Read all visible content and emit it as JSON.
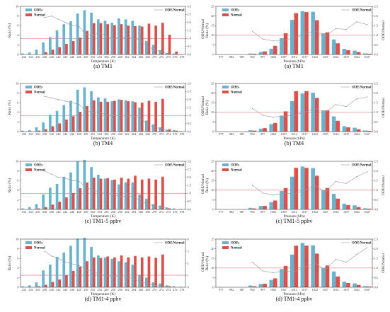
{
  "colors": {
    "odes": "#6bb3cc",
    "normal": "#d9514a",
    "ratio_line": "#9a9aa6",
    "ref_line": "#e07a80",
    "axis": "#444444"
  },
  "legend": {
    "odes": "ODEs",
    "normal": "Normal",
    "ratio": "ODE/Normal"
  },
  "chart_data": [
    {
      "type": "bar",
      "caption": "(a) TM1",
      "xlabel": "Temperature (K)",
      "ylabel": "Ratio (%)",
      "y2label": "",
      "ylim": [
        0,
        10
      ],
      "yticks": [
        0,
        2,
        4,
        6,
        8,
        10
      ],
      "y2lim": [
        0,
        3
      ],
      "y2ticks": [
        "0.0",
        "0.5",
        "1.0",
        "1.5",
        "2.0",
        "2.5",
        "3.0"
      ],
      "ref_level": 1.0,
      "categories": [
        "232",
        "234",
        "236",
        "238",
        "240",
        "242",
        "244",
        "246",
        "248",
        "250",
        "252",
        "254",
        "256",
        "258",
        "260",
        "262",
        "264",
        "266",
        "268",
        "270",
        "272",
        "274",
        "276",
        "278"
      ],
      "series": [
        {
          "name": "ODEs",
          "values": [
            0.2,
            0.4,
            1.0,
            2.5,
            3.6,
            5.0,
            6.3,
            6.9,
            8.5,
            9.2,
            8.7,
            7.3,
            7.0,
            6.6,
            7.5,
            7.3,
            7.0,
            6.0,
            2.8,
            2.0,
            0.9,
            0.3,
            0.2,
            0.1
          ]
        },
        {
          "name": "Normal",
          "values": [
            0,
            0,
            0,
            0.5,
            1.0,
            1.5,
            2.2,
            2.8,
            3.5,
            4.9,
            6.5,
            6.5,
            6.3,
            6.1,
            6.3,
            6.0,
            5.9,
            5.8,
            6.4,
            6.0,
            6.6,
            4.1,
            0.6,
            0
          ]
        },
        {
          "name": "ODE/Normal",
          "values": [
            null,
            null,
            null,
            2.3,
            2.4,
            2.2,
            2.0,
            1.8,
            1.75,
            1.25,
            1.2,
            1.35,
            1.15,
            1.0,
            1.05,
            1.1,
            1.0,
            0.9,
            0.45,
            0.35,
            0.15,
            0.05,
            null,
            null
          ]
        }
      ]
    },
    {
      "type": "bar",
      "caption": "(a) TM1",
      "xlabel": "Pressure (hPa)",
      "ylabel": "Ratio (%)",
      "y2label": "ODE/Normal",
      "ylim": [
        0,
        25
      ],
      "yticks": [
        0,
        5,
        10,
        15,
        20,
        25
      ],
      "y2lim": [
        0,
        2.5
      ],
      "y2ticks": [
        "0.0",
        "0.5",
        "1.0",
        "1.5",
        "2.0",
        "2.5"
      ],
      "ref_level": 1.0,
      "categories": [
        "977",
        "982",
        "987",
        "992",
        "997",
        "1002",
        "1007",
        "1012",
        "1017",
        "1022",
        "1027",
        "1032",
        "1037",
        "1042",
        "1047"
      ],
      "series": [
        {
          "name": "ODEs",
          "values": [
            0,
            0,
            0,
            0.5,
            1.3,
            3.0,
            8.5,
            18.0,
            22.5,
            22.2,
            11.0,
            7.8,
            2.9,
            2.0,
            0.6
          ]
        },
        {
          "name": "Normal",
          "values": [
            0,
            0,
            0,
            0.4,
            1.6,
            4.5,
            11.0,
            21.5,
            22.0,
            17.8,
            11.5,
            5.8,
            2.2,
            1.2,
            0.4
          ]
        },
        {
          "name": "ODE/Normal",
          "values": [
            null,
            null,
            null,
            1.2,
            0.8,
            0.7,
            0.75,
            0.85,
            1.05,
            1.25,
            0.95,
            1.35,
            1.3,
            1.7,
            1.55
          ]
        }
      ]
    },
    {
      "type": "bar",
      "caption": "(b) TM4",
      "xlabel": "Temperature (K)",
      "ylabel": "Ratio (%)",
      "y2label": "",
      "ylim": [
        0,
        10
      ],
      "yticks": [
        0,
        2,
        4,
        6,
        8,
        10
      ],
      "y2lim": [
        0,
        3
      ],
      "y2ticks": [
        "0.0",
        "0.5",
        "1.0",
        "1.5",
        "2.0",
        "2.5",
        "3.0"
      ],
      "ref_level": 1.0,
      "categories": [
        "232",
        "234",
        "236",
        "238",
        "240",
        "242",
        "244",
        "246",
        "248",
        "250",
        "252",
        "254",
        "256",
        "258",
        "260",
        "262",
        "264",
        "266",
        "268",
        "270",
        "272",
        "274",
        "276",
        "278"
      ],
      "series": [
        {
          "name": "ODEs",
          "values": [
            0.2,
            0.3,
            0.9,
            1.9,
            3.5,
            4.3,
            5.5,
            6.4,
            8.7,
            9.2,
            8.4,
            7.1,
            6.9,
            6.3,
            6.7,
            6.5,
            6.3,
            5.0,
            2.3,
            1.5,
            0.9,
            0.4,
            0.3,
            0.1
          ]
        },
        {
          "name": "Normal",
          "values": [
            0,
            0,
            0.2,
            0.5,
            1.1,
            1.7,
            2.5,
            3.2,
            4.1,
            5.3,
            6.5,
            6.2,
            6.2,
            6.4,
            6.6,
            6.3,
            6.1,
            6.0,
            6.4,
            6.2,
            6.8,
            0.5,
            0.2,
            0
          ]
        },
        {
          "name": "ODE/Normal",
          "values": [
            null,
            null,
            null,
            2.2,
            2.1,
            2.0,
            1.9,
            1.8,
            1.7,
            1.3,
            1.2,
            1.2,
            1.05,
            1.0,
            1.0,
            1.0,
            0.95,
            0.85,
            0.4,
            0.3,
            0.15,
            0.05,
            null,
            null
          ]
        }
      ]
    },
    {
      "type": "bar",
      "caption": "(b) TM4",
      "xlabel": "Pressure (hPa)",
      "ylabel": "Ratio (%)",
      "y2label": "ODE/Normal",
      "ylim": [
        0,
        25
      ],
      "yticks": [
        0,
        5,
        10,
        15,
        20,
        25
      ],
      "y2lim": [
        0,
        2.5
      ],
      "y2ticks": [
        "0.0",
        "0.5",
        "1.0",
        "1.5",
        "2.0",
        "2.5"
      ],
      "ref_level": 1.0,
      "categories": [
        "977",
        "982",
        "987",
        "992",
        "997",
        "1002",
        "1007",
        "1012",
        "1017",
        "1022",
        "1027",
        "1032",
        "1037",
        "1042",
        "1047"
      ],
      "series": [
        {
          "name": "ODEs",
          "values": [
            0,
            0,
            0,
            0.7,
            1.5,
            3.9,
            8.3,
            15.8,
            19.8,
            20.2,
            11.0,
            7.9,
            2.8,
            2.0,
            0.6
          ]
        },
        {
          "name": "Normal",
          "values": [
            0,
            0,
            0,
            0.5,
            1.8,
            4.5,
            10.5,
            21.0,
            21.0,
            17.5,
            11.0,
            5.6,
            2.2,
            1.2,
            0.4
          ]
        },
        {
          "name": "ODE/Normal",
          "values": [
            null,
            null,
            null,
            1.2,
            0.85,
            0.75,
            0.8,
            0.85,
            1.0,
            1.2,
            1.0,
            1.4,
            1.3,
            1.7,
            1.8
          ]
        }
      ]
    },
    {
      "type": "bar",
      "caption": "(c) TM1-5 ppbv",
      "xlabel": "Temperature (K)",
      "ylabel": "Ratio (%)",
      "y2label": "",
      "ylim": [
        0,
        10
      ],
      "yticks": [
        0,
        2,
        4,
        6,
        8,
        10
      ],
      "y2lim": [
        0,
        3
      ],
      "y2ticks": [
        "0.0",
        "0.5",
        "1.0",
        "1.5",
        "2.0",
        "2.5",
        "3.0"
      ],
      "ref_level": 1.0,
      "categories": [
        "232",
        "234",
        "236",
        "238",
        "240",
        "242",
        "244",
        "246",
        "248",
        "250",
        "252",
        "254",
        "256",
        "258",
        "260",
        "262",
        "264",
        "266",
        "268",
        "270",
        "272",
        "274",
        "276",
        "278"
      ],
      "series": [
        {
          "name": "ODEs",
          "values": [
            0.2,
            0.5,
            1.1,
            3.1,
            4.5,
            5.3,
            6.8,
            7.7,
            10.0,
            10.3,
            8.8,
            7.2,
            6.4,
            6.1,
            5.2,
            5.6,
            5.6,
            3.1,
            2.2,
            1.1,
            0.8,
            0.4,
            0.2,
            0.1
          ]
        },
        {
          "name": "Normal",
          "values": [
            0,
            0,
            0.2,
            0.5,
            1.0,
            1.6,
            2.5,
            3.4,
            4.4,
            5.6,
            6.6,
            6.4,
            6.5,
            6.2,
            6.6,
            6.4,
            7.0,
            6.2,
            6.4,
            6.2,
            6.8,
            0.2,
            0,
            0
          ]
        },
        {
          "name": "ODE/Normal",
          "values": [
            null,
            null,
            null,
            2.4,
            2.2,
            2.0,
            1.95,
            1.8,
            1.75,
            1.4,
            1.2,
            1.1,
            0.95,
            0.95,
            0.8,
            0.85,
            0.8,
            0.5,
            0.35,
            0.2,
            0.15,
            0.05,
            null,
            null
          ]
        }
      ]
    },
    {
      "type": "bar",
      "caption": "(c) TM1-5 ppbv",
      "xlabel": "Pressure (hPa)",
      "ylabel": "Ratio (%)",
      "y2label": "ODE/Normal",
      "ylim": [
        0,
        25
      ],
      "yticks": [
        0,
        5,
        10,
        15,
        20,
        25
      ],
      "y2lim": [
        0,
        2.5
      ],
      "y2ticks": [
        "0.0",
        "0.5",
        "1.0",
        "1.5",
        "2.0",
        "2.5"
      ],
      "ref_level": 1.0,
      "categories": [
        "977",
        "982",
        "987",
        "992",
        "997",
        "1002",
        "1007",
        "1012",
        "1017",
        "1022",
        "1027",
        "1032",
        "1037",
        "1042",
        "1047"
      ],
      "series": [
        {
          "name": "ODEs",
          "values": [
            0,
            0,
            0,
            0.8,
            1.8,
            3.8,
            9.6,
            17.0,
            22.3,
            21.5,
            10.1,
            8.1,
            3.0,
            2.1,
            0.6
          ]
        },
        {
          "name": "Normal",
          "values": [
            0,
            0,
            0,
            0.5,
            1.8,
            4.6,
            11.1,
            21.6,
            21.6,
            17.5,
            11.1,
            5.6,
            2.2,
            1.2,
            0.4
          ]
        },
        {
          "name": "ODE/Normal",
          "values": [
            null,
            null,
            null,
            1.25,
            0.85,
            0.75,
            0.85,
            0.8,
            1.0,
            1.25,
            0.9,
            1.45,
            1.35,
            1.7,
            1.95
          ]
        }
      ]
    },
    {
      "type": "bar",
      "caption": "(d) TM1-4 ppbv",
      "xlabel": "Temperature (K)",
      "ylabel": "Ratio (%)",
      "y2label": "",
      "ylim": [
        0,
        10
      ],
      "yticks": [
        0,
        2,
        4,
        6,
        8,
        10
      ],
      "y2lim": [
        0,
        4
      ],
      "y2ticks": [
        "0",
        "1",
        "2",
        "3",
        "4"
      ],
      "ref_level": 1.0,
      "categories": [
        "232",
        "234",
        "236",
        "238",
        "240",
        "242",
        "244",
        "246",
        "248",
        "250",
        "252",
        "254",
        "256",
        "258",
        "260",
        "262",
        "264",
        "266",
        "268",
        "270",
        "272",
        "274",
        "276",
        "278"
      ],
      "series": [
        {
          "name": "ODEs",
          "values": [
            0.2,
            0.4,
            1.0,
            3.5,
            4.7,
            6.3,
            7.2,
            8.6,
            10.1,
            10.3,
            8.4,
            6.6,
            6.2,
            5.9,
            5.4,
            5.2,
            4.7,
            2.6,
            2.0,
            1.0,
            0.8,
            0.4,
            0.2,
            0.1
          ]
        },
        {
          "name": "Normal",
          "values": [
            0,
            0,
            0.2,
            0.5,
            1.1,
            1.6,
            2.5,
            3.4,
            4.3,
            5.4,
            6.2,
            6.1,
            6.4,
            6.2,
            6.6,
            6.2,
            6.5,
            6.2,
            6.4,
            6.1,
            6.8,
            0.2,
            0,
            0
          ]
        },
        {
          "name": "ODE/Normal",
          "values": [
            null,
            null,
            null,
            3.0,
            2.6,
            2.4,
            2.1,
            1.95,
            1.85,
            1.45,
            1.3,
            1.1,
            0.95,
            0.9,
            0.85,
            0.85,
            0.7,
            0.45,
            0.3,
            0.15,
            0.1,
            0.05,
            null,
            null
          ]
        }
      ]
    },
    {
      "type": "bar",
      "caption": "(d) TM1-4 ppbv",
      "xlabel": "Pressure (hPa)",
      "ylabel": "Ratio (%)",
      "y2label": "ODE/Normal",
      "ylim": [
        0,
        25
      ],
      "yticks": [
        0,
        5,
        10,
        15,
        20,
        25
      ],
      "y2lim": [
        0,
        2.5
      ],
      "y2ticks": [
        "0.0",
        "0.5",
        "1.0",
        "1.5",
        "2.0",
        "2.5"
      ],
      "ref_level": 1.0,
      "categories": [
        "977",
        "982",
        "987",
        "992",
        "997",
        "1002",
        "1007",
        "1012",
        "1017",
        "1022",
        "1027",
        "1032",
        "1037",
        "1042",
        "1047"
      ],
      "series": [
        {
          "name": "ODEs",
          "values": [
            0,
            0,
            0,
            0.9,
            1.7,
            3.8,
            9.5,
            17.0,
            23.0,
            21.8,
            10.0,
            8.2,
            2.9,
            2.0,
            0.6
          ]
        },
        {
          "name": "Normal",
          "values": [
            0,
            0,
            0,
            0.5,
            1.8,
            4.6,
            11.1,
            21.6,
            21.6,
            17.5,
            11.3,
            5.6,
            2.2,
            1.2,
            0.4
          ]
        },
        {
          "name": "ODE/Normal",
          "values": [
            null,
            null,
            null,
            1.3,
            0.85,
            0.75,
            0.85,
            0.8,
            1.05,
            1.25,
            0.9,
            1.45,
            1.3,
            1.7,
            2.05
          ]
        }
      ]
    }
  ]
}
